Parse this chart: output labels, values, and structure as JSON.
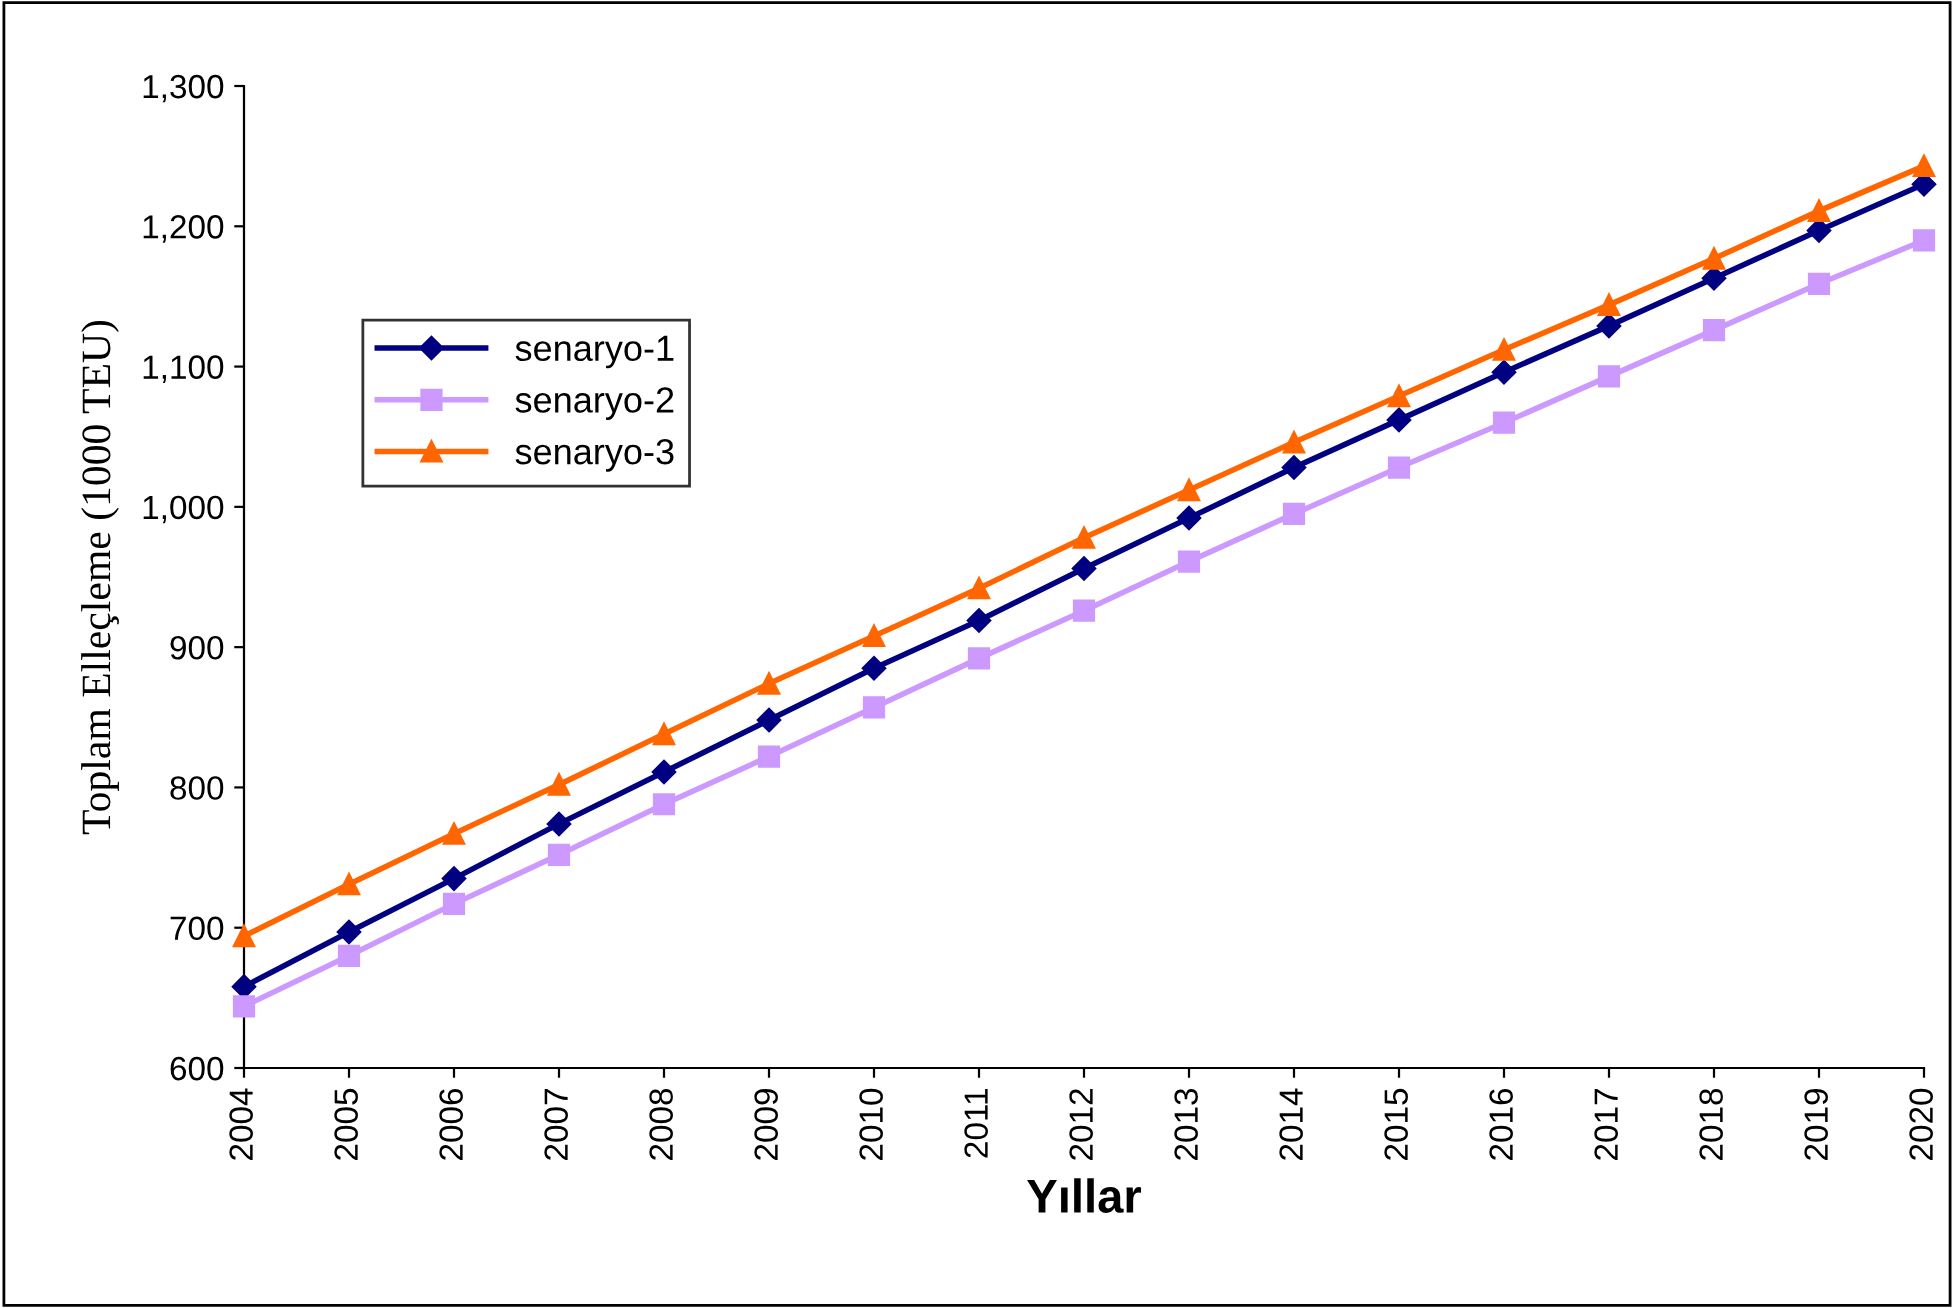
{
  "chart_data": {
    "type": "line",
    "xlabel": "Yıllar",
    "ylabel": "Toplam Elleçleme (1000 TEU)",
    "categories": [
      "2004",
      "2005",
      "2006",
      "2007",
      "2008",
      "2009",
      "2010",
      "2011",
      "2012",
      "2013",
      "2014",
      "2015",
      "2016",
      "2017",
      "2018",
      "2019",
      "2020"
    ],
    "series": [
      {
        "name": "senaryo-1",
        "color": "#000080",
        "marker": "diamond",
        "values": [
          658,
          697,
          735,
          774,
          811,
          848,
          885,
          919,
          956,
          992,
          1028,
          1062,
          1096,
          1129,
          1163,
          1197,
          1230
        ]
      },
      {
        "name": "senaryo-2",
        "color": "#cc99ff",
        "marker": "square",
        "values": [
          644,
          680,
          717,
          752,
          788,
          822,
          857,
          892,
          926,
          961,
          995,
          1028,
          1060,
          1093,
          1126,
          1159,
          1190
        ]
      },
      {
        "name": "senaryo-3",
        "color": "#ff6600",
        "marker": "triangle",
        "values": [
          694,
          731,
          767,
          802,
          838,
          874,
          908,
          942,
          978,
          1012,
          1046,
          1079,
          1112,
          1144,
          1177,
          1211,
          1243
        ]
      }
    ],
    "ylim": [
      600,
      1300
    ],
    "yticks": [
      600,
      700,
      800,
      900,
      {
        "value": 1000,
        "label": "1,000"
      },
      {
        "value": 1100,
        "label": "1,100"
      },
      {
        "value": 1200,
        "label": "1,200"
      },
      {
        "value": 1300,
        "label": "1,300"
      }
    ],
    "grid": false,
    "legend": "upper left",
    "line_style": "solid"
  }
}
